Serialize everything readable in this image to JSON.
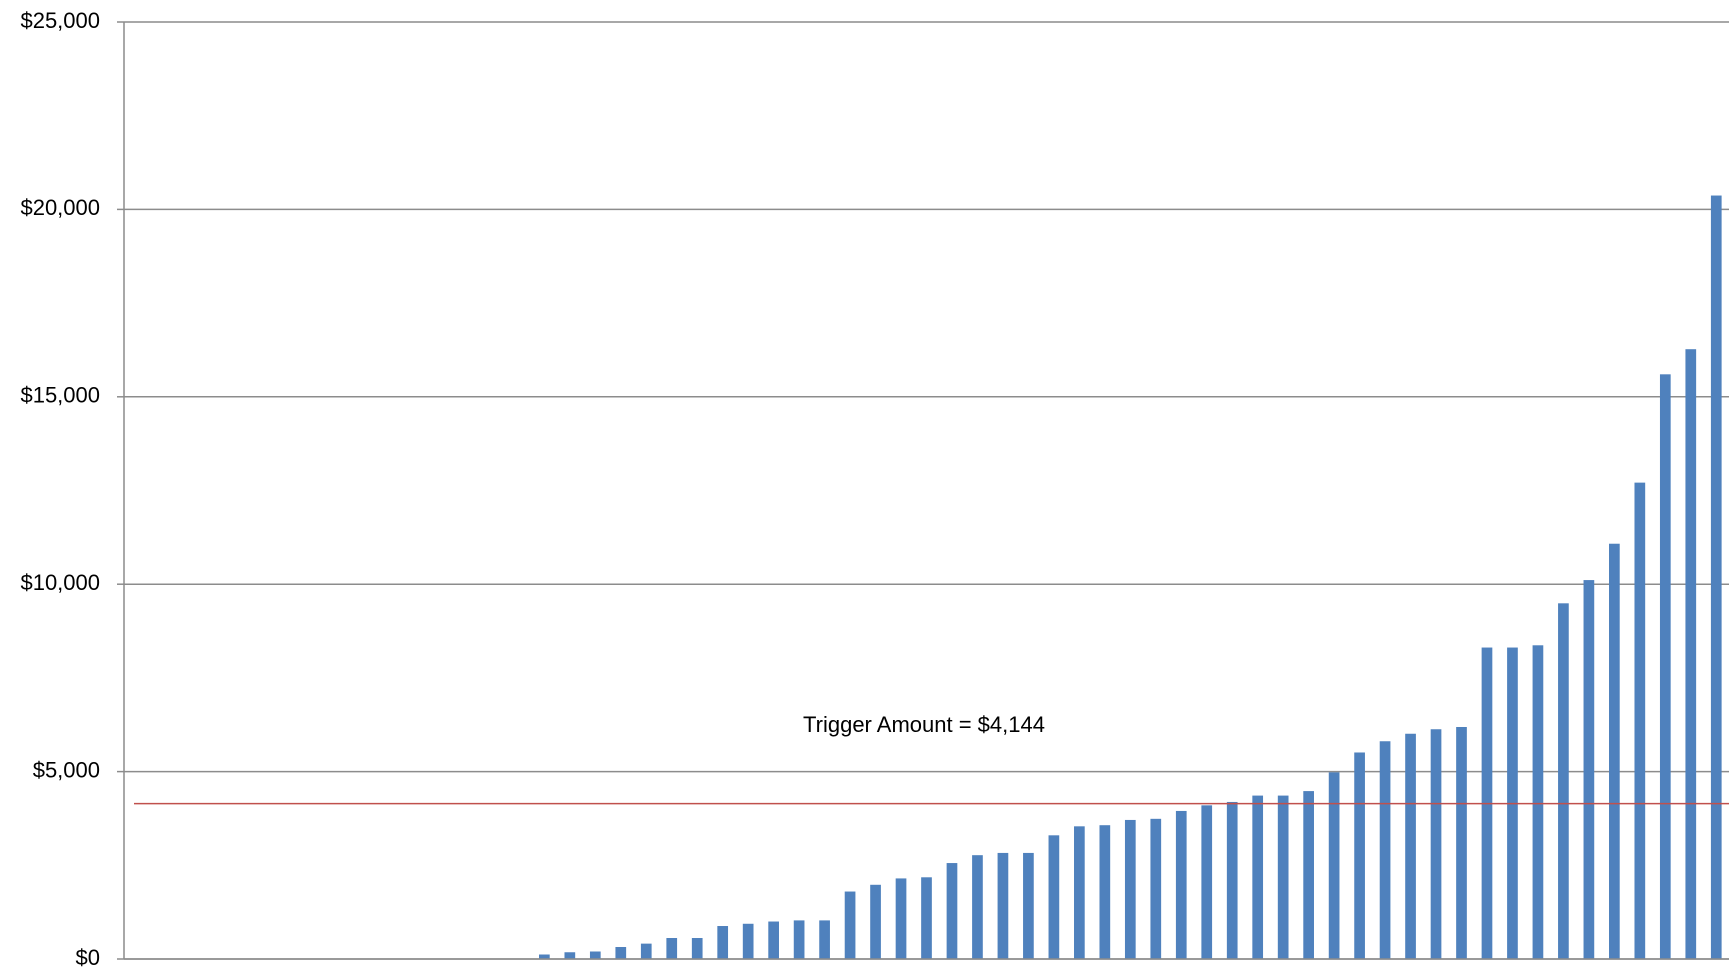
{
  "chart_data": {
    "type": "bar",
    "categories": [
      null,
      null,
      null,
      null,
      null,
      null,
      null,
      null,
      null,
      null,
      null,
      null,
      null,
      null,
      null,
      null,
      null,
      null,
      null,
      null,
      null,
      null,
      null,
      null,
      null,
      null,
      null,
      null,
      null,
      null,
      null,
      null,
      null,
      null,
      null,
      null,
      null,
      null,
      null,
      null,
      null,
      null,
      null,
      null,
      null,
      null,
      null,
      null,
      null,
      null,
      null,
      null,
      null,
      null,
      null,
      null,
      null,
      null,
      null,
      null,
      null,
      null,
      null
    ],
    "values": [
      0,
      0,
      0,
      0,
      0,
      0,
      0,
      0,
      0,
      0,
      0,
      0,
      0,
      0,
      0,
      0,
      120,
      180,
      200,
      320,
      410,
      560,
      560,
      880,
      940,
      1000,
      1030,
      1030,
      1800,
      1980,
      2150,
      2180,
      2560,
      2770,
      2830,
      2830,
      3300,
      3540,
      3570,
      3710,
      3740,
      3950,
      4100,
      4190,
      4360,
      4360,
      4480,
      4980,
      5510,
      5810,
      6010,
      6130,
      6190,
      8310,
      8310,
      8370,
      9490,
      10110,
      11080,
      12710,
      15600,
      16270,
      20370
    ],
    "color": "#4f81bd",
    "ylim": [
      0,
      25000
    ],
    "yticks": [
      {
        "value": 0,
        "label": "$0"
      },
      {
        "value": 5000,
        "label": "$5,000"
      },
      {
        "value": 10000,
        "label": "$10,000"
      },
      {
        "value": 15000,
        "label": "$15,000"
      },
      {
        "value": 20000,
        "label": "$20,000"
      },
      {
        "value": 25000,
        "label": "$25,000"
      }
    ],
    "grid": true,
    "reference_line": {
      "value": 4144,
      "color": "#c0504d"
    },
    "annotation": "Trigger Amount = $4,144"
  }
}
